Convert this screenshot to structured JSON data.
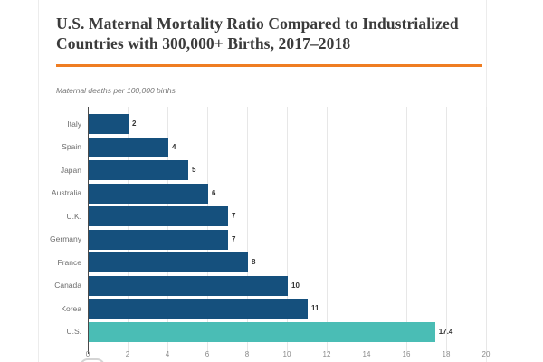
{
  "header": {
    "title": "U.S. Maternal Mortality Ratio Compared to Industrialized Countries with 300,000+ Births, 2017–2018",
    "subtitle": "Maternal deaths per 100,000 births"
  },
  "chart_data": {
    "type": "bar",
    "orientation": "horizontal",
    "title": "U.S. Maternal Mortality Ratio Compared to Industrialized Countries with 300,000+ Births, 2017–2018",
    "xlabel": "Maternal deaths per 100,000 births",
    "categories": [
      "Italy",
      "Spain",
      "Japan",
      "Australia",
      "U.K.",
      "Germany",
      "France",
      "Canada",
      "Korea",
      "U.S."
    ],
    "values": [
      2,
      4,
      5,
      6,
      7,
      7,
      8,
      10,
      11,
      17.4
    ],
    "value_labels": [
      "2",
      "4",
      "5",
      "6",
      "7",
      "7",
      "8",
      "10",
      "11",
      "17.4"
    ],
    "highlight_category": "U.S.",
    "xlim": [
      0,
      20
    ],
    "x_ticks": [
      0,
      2,
      4,
      6,
      8,
      10,
      12,
      14,
      16,
      18,
      20
    ],
    "grid": true,
    "legend": "none"
  },
  "colors": {
    "bar": "#15507d",
    "highlight_bar": "#4abdb5",
    "accent_rule": "#ef7d22",
    "title_text": "#3b3b3b",
    "axis_label": "#8a8a8a",
    "category_label": "#6e6e6e",
    "gridline": "#e7e7e7"
  }
}
